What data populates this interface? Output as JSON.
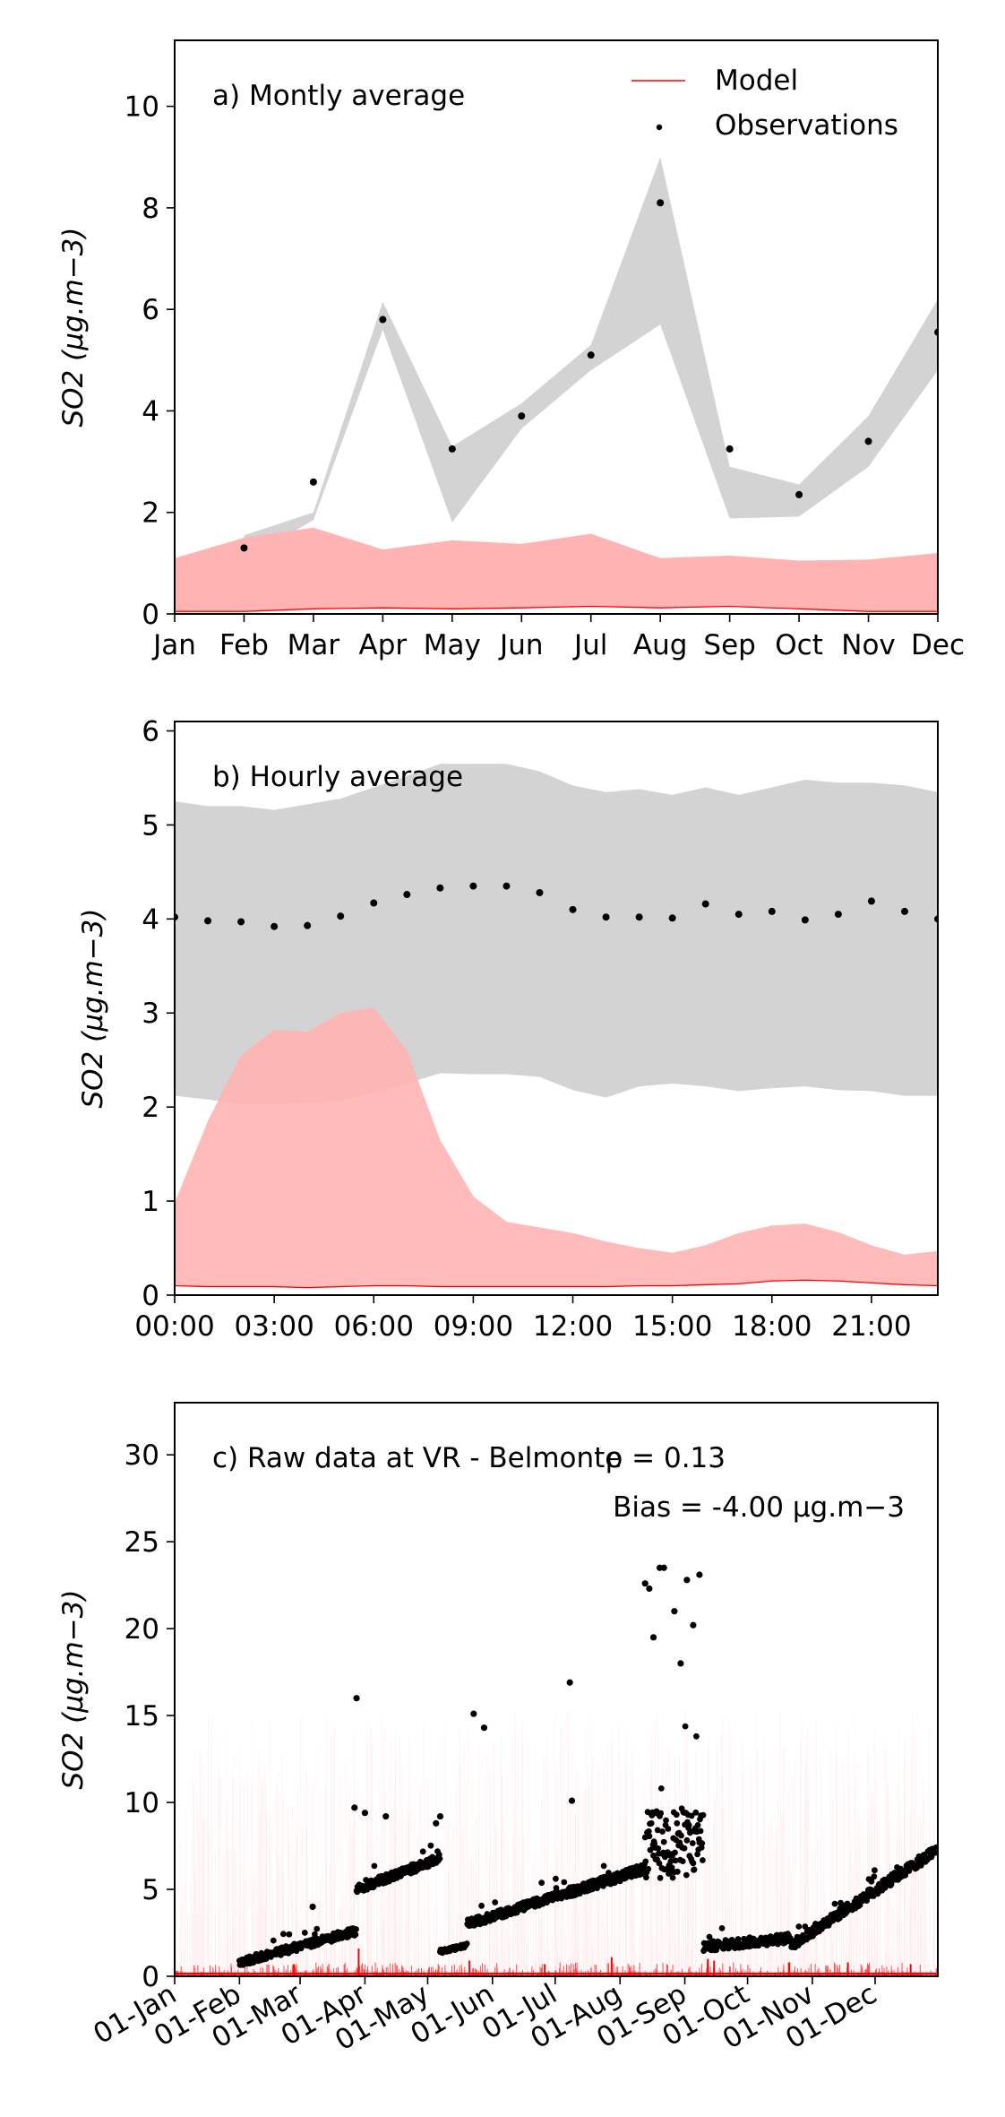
{
  "colors": {
    "model": "#ff0000",
    "model_band": "#ffb3b3",
    "obs": "#000000",
    "obs_band": "#d3d3d3"
  },
  "legend": {
    "model": "Model",
    "observations": "Observations"
  },
  "chart_data": [
    {
      "type": "line",
      "annotation": "a) Montly average",
      "ylabel": "SO2 (µg.m−3)",
      "ylim": [
        0,
        11.3
      ],
      "yticks": [
        0,
        2,
        4,
        6,
        8,
        10
      ],
      "categories": [
        "Jan",
        "Feb",
        "Mar",
        "Apr",
        "May",
        "Jun",
        "Jul",
        "Aug",
        "Sep",
        "Oct",
        "Nov",
        "Dec"
      ],
      "observations": {
        "x": [
          1,
          2,
          3,
          4,
          5,
          6,
          7,
          8,
          9,
          10,
          11
        ],
        "values": [
          1.3,
          2.6,
          5.8,
          3.25,
          3.9,
          5.1,
          8.1,
          3.25,
          2.35,
          3.4,
          5.55
        ]
      },
      "observations_band": {
        "x": [
          1,
          2,
          3,
          4,
          5,
          6,
          7,
          8,
          9,
          10,
          11
        ],
        "upper": [
          1.55,
          2.0,
          6.15,
          3.3,
          4.15,
          5.3,
          9.0,
          2.9,
          2.55,
          3.9,
          6.2
        ],
        "lower": [
          1.05,
          1.85,
          5.6,
          1.8,
          3.65,
          4.8,
          5.7,
          1.88,
          1.92,
          2.9,
          4.8
        ]
      },
      "model_band": {
        "x": [
          0,
          1,
          2,
          3,
          4,
          5,
          6,
          7,
          8,
          9,
          10,
          11
        ],
        "upper": [
          1.1,
          1.5,
          1.7,
          1.27,
          1.45,
          1.38,
          1.58,
          1.1,
          1.15,
          1.05,
          1.07,
          1.2
        ],
        "lower": [
          0.05,
          0.05,
          0.1,
          0.12,
          0.1,
          0.12,
          0.15,
          0.12,
          0.15,
          0.1,
          0.05,
          0.05
        ]
      }
    },
    {
      "type": "line",
      "annotation": "b) Hourly average",
      "ylabel": "SO2 (µg.m−3)",
      "ylim": [
        0,
        6.1
      ],
      "yticks": [
        0,
        1,
        2,
        3,
        4,
        5,
        6
      ],
      "xlim": [
        0,
        23
      ],
      "xticks": [
        0,
        3,
        6,
        9,
        12,
        15,
        18,
        21
      ],
      "xtick_labels": [
        "00:00",
        "03:00",
        "06:00",
        "09:00",
        "12:00",
        "15:00",
        "18:00",
        "21:00"
      ],
      "observations": {
        "x": [
          0,
          1,
          2,
          3,
          4,
          5,
          6,
          7,
          8,
          9,
          10,
          11,
          12,
          13,
          14,
          15,
          16,
          17,
          18,
          19,
          20,
          21,
          22,
          23
        ],
        "values": [
          4.02,
          3.98,
          3.97,
          3.92,
          3.93,
          4.03,
          4.17,
          4.26,
          4.33,
          4.35,
          4.35,
          4.28,
          4.1,
          4.02,
          4.02,
          4.01,
          4.16,
          4.05,
          4.08,
          3.99,
          4.05,
          4.19,
          4.08,
          4.0
        ]
      },
      "observations_band": {
        "x": [
          0,
          1,
          2,
          3,
          4,
          5,
          6,
          7,
          8,
          9,
          10,
          11,
          12,
          13,
          14,
          15,
          16,
          17,
          18,
          19,
          20,
          21,
          22,
          23
        ],
        "upper": [
          5.25,
          5.2,
          5.2,
          5.16,
          5.22,
          5.28,
          5.4,
          5.52,
          5.65,
          5.65,
          5.65,
          5.57,
          5.42,
          5.35,
          5.38,
          5.32,
          5.4,
          5.32,
          5.4,
          5.48,
          5.45,
          5.45,
          5.42,
          5.35
        ],
        "lower": [
          2.12,
          2.08,
          2.03,
          2.03,
          2.05,
          2.07,
          2.15,
          2.25,
          2.36,
          2.35,
          2.35,
          2.32,
          2.18,
          2.1,
          2.22,
          2.25,
          2.22,
          2.17,
          2.2,
          2.22,
          2.18,
          2.17,
          2.12,
          2.12
        ]
      },
      "model_band": {
        "x": [
          0,
          1,
          2,
          3,
          4,
          5,
          6,
          7,
          8,
          9,
          10,
          11,
          12,
          13,
          14,
          15,
          16,
          17,
          18,
          19,
          20,
          21,
          22,
          23
        ],
        "upper": [
          0.98,
          1.85,
          2.55,
          2.82,
          2.8,
          3.0,
          3.06,
          2.6,
          1.65,
          1.05,
          0.78,
          0.72,
          0.66,
          0.57,
          0.5,
          0.45,
          0.53,
          0.66,
          0.74,
          0.76,
          0.67,
          0.53,
          0.43,
          0.47
        ],
        "lower": [
          0.1,
          0.09,
          0.09,
          0.09,
          0.08,
          0.09,
          0.1,
          0.1,
          0.09,
          0.09,
          0.09,
          0.09,
          0.09,
          0.09,
          0.1,
          0.1,
          0.11,
          0.12,
          0.15,
          0.16,
          0.15,
          0.13,
          0.11,
          0.1
        ]
      }
    },
    {
      "type": "scatter",
      "annotation": "c) Raw data at VR - Belmonte",
      "rho_text": "ρ = 0.13",
      "bias_text": "Bias = -4.00 µg.m−3",
      "ylabel": "SO2 (µg.m−3)",
      "ylim": [
        0,
        33
      ],
      "yticks": [
        0,
        5,
        10,
        15,
        20,
        25,
        30
      ],
      "xlim": [
        "2020-01-01",
        "2020-12-31"
      ],
      "xtick_labels": [
        "01-Jan",
        "01-Feb",
        "01-Mar",
        "01-Apr",
        "01-May",
        "01-Jun",
        "01-Jul",
        "01-Aug",
        "01-Sep",
        "01-Oct",
        "01-Nov",
        "01-Dec"
      ],
      "observation_segments": [
        {
          "start": "2020-02-01",
          "end": "2020-03-28",
          "from": 0.8,
          "to": 2.6,
          "spread": 0.45
        },
        {
          "start": "2020-03-28",
          "end": "2020-05-07",
          "from": 5.0,
          "to": 6.8,
          "spread": 0.5
        },
        {
          "start": "2020-05-07",
          "end": "2020-05-20",
          "from": 1.4,
          "to": 1.8,
          "spread": 0.2
        },
        {
          "start": "2020-05-20",
          "end": "2020-07-07",
          "from": 3.0,
          "to": 4.8,
          "spread": 0.5
        },
        {
          "start": "2020-07-07",
          "end": "2020-08-13",
          "from": 4.8,
          "to": 6.2,
          "spread": 0.55
        },
        {
          "start": "2020-08-13",
          "end": "2020-09-10",
          "from": 7.5,
          "to": 7.8,
          "spread": 4.0
        },
        {
          "start": "2020-09-10",
          "end": "2020-10-22",
          "from": 1.7,
          "to": 2.2,
          "spread": 0.55
        },
        {
          "start": "2020-10-22",
          "end": "2020-12-31",
          "from": 1.8,
          "to": 7.3,
          "spread": 0.6
        }
      ],
      "observation_outliers": {
        "dates": [
          "2020-03-28",
          "2020-03-27",
          "2020-04-01",
          "2020-04-11",
          "2020-05-05",
          "2020-05-07",
          "2020-03-07",
          "2020-05-23",
          "2020-05-28",
          "2020-07-08",
          "2020-07-09",
          "2020-08-13",
          "2020-08-15",
          "2020-08-20",
          "2020-08-22",
          "2020-09-02",
          "2020-09-08",
          "2020-08-27",
          "2020-08-17",
          "2020-09-05",
          "2020-08-30"
        ],
        "values": [
          16.0,
          9.7,
          9.4,
          9.2,
          8.8,
          9.2,
          4.0,
          15.1,
          14.3,
          16.9,
          10.1,
          22.6,
          22.3,
          23.5,
          23.5,
          22.8,
          23.1,
          21.0,
          19.5,
          20.2,
          18.0
        ]
      },
      "model_baseline": 0.15,
      "model_spikes": {
        "dates": [
          "2020-03-29",
          "2020-05-21",
          "2020-07-28",
          "2020-09-12",
          "2020-09-15",
          "2020-10-21",
          "2020-11-18",
          "2020-02-27",
          "2020-06-26",
          "2020-12-18"
        ],
        "values": [
          1.6,
          0.9,
          1.1,
          1.0,
          0.9,
          0.8,
          0.8,
          0.7,
          0.7,
          0.7
        ]
      }
    }
  ]
}
